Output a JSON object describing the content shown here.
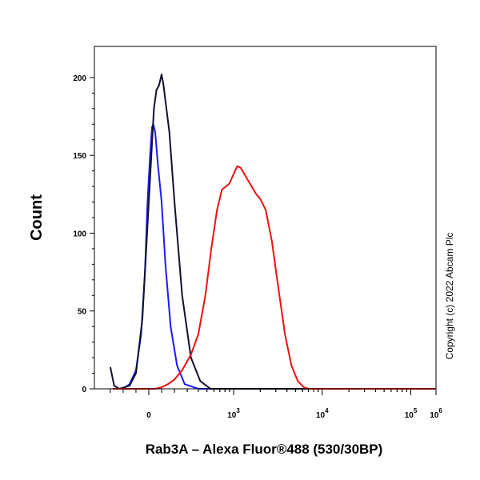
{
  "chart_data": {
    "type": "line",
    "title": "",
    "xlabel": "Rab3A – Alexa Fluor®488 (530/30BP)",
    "ylabel": "Count",
    "copyright": "Copyright (c) 2022 Abcam Plc",
    "x_scale": "biexponential",
    "xlim": [
      -300,
      1000000
    ],
    "ylim": [
      0,
      200
    ],
    "grid": false,
    "legend": "none",
    "y_ticks": [
      0,
      50,
      100,
      150,
      200
    ],
    "x_ticks": [
      {
        "value": 0,
        "base": "0",
        "exp": ""
      },
      {
        "value": 1000,
        "base": "10",
        "exp": "3"
      },
      {
        "value": 10000,
        "base": "10",
        "exp": "4"
      },
      {
        "value": 100000,
        "base": "10",
        "exp": "5"
      },
      {
        "value": 1000000,
        "base": "10",
        "exp": "6"
      }
    ],
    "series": [
      {
        "color": "#1a1aff",
        "points": [
          [
            -280,
            0
          ],
          [
            -200,
            0
          ],
          [
            -150,
            3
          ],
          [
            -100,
            12
          ],
          [
            -60,
            35
          ],
          [
            -30,
            75
          ],
          [
            -10,
            120
          ],
          [
            10,
            150
          ],
          [
            25,
            168
          ],
          [
            35,
            170
          ],
          [
            50,
            165
          ],
          [
            70,
            145
          ],
          [
            100,
            120
          ],
          [
            130,
            80
          ],
          [
            170,
            40
          ],
          [
            220,
            15
          ],
          [
            280,
            3
          ],
          [
            400,
            0
          ],
          [
            1000000,
            0
          ]
        ]
      },
      {
        "color": "#101030",
        "points": [
          [
            -300,
            14
          ],
          [
            -270,
            2
          ],
          [
            -230,
            0
          ],
          [
            -150,
            2
          ],
          [
            -100,
            10
          ],
          [
            -50,
            45
          ],
          [
            -10,
            105
          ],
          [
            20,
            150
          ],
          [
            40,
            180
          ],
          [
            60,
            192
          ],
          [
            80,
            195
          ],
          [
            100,
            202
          ],
          [
            115,
            195
          ],
          [
            130,
            185
          ],
          [
            160,
            165
          ],
          [
            200,
            120
          ],
          [
            260,
            60
          ],
          [
            330,
            20
          ],
          [
            420,
            5
          ],
          [
            550,
            0
          ],
          [
            1000000,
            0
          ]
        ]
      },
      {
        "color": "#ee1111",
        "points": [
          [
            -280,
            0
          ],
          [
            50,
            0
          ],
          [
            100,
            1
          ],
          [
            150,
            3
          ],
          [
            200,
            6
          ],
          [
            260,
            12
          ],
          [
            330,
            22
          ],
          [
            400,
            35
          ],
          [
            480,
            60
          ],
          [
            560,
            90
          ],
          [
            650,
            115
          ],
          [
            740,
            128
          ],
          [
            820,
            130
          ],
          [
            900,
            132
          ],
          [
            1000,
            138
          ],
          [
            1100,
            143
          ],
          [
            1200,
            142
          ],
          [
            1320,
            138
          ],
          [
            1450,
            134
          ],
          [
            1600,
            130
          ],
          [
            1800,
            125
          ],
          [
            2000,
            122
          ],
          [
            2300,
            115
          ],
          [
            2700,
            95
          ],
          [
            3200,
            65
          ],
          [
            3800,
            35
          ],
          [
            4500,
            15
          ],
          [
            5300,
            5
          ],
          [
            6200,
            1
          ],
          [
            7000,
            0
          ],
          [
            1000000,
            0
          ]
        ]
      }
    ]
  }
}
